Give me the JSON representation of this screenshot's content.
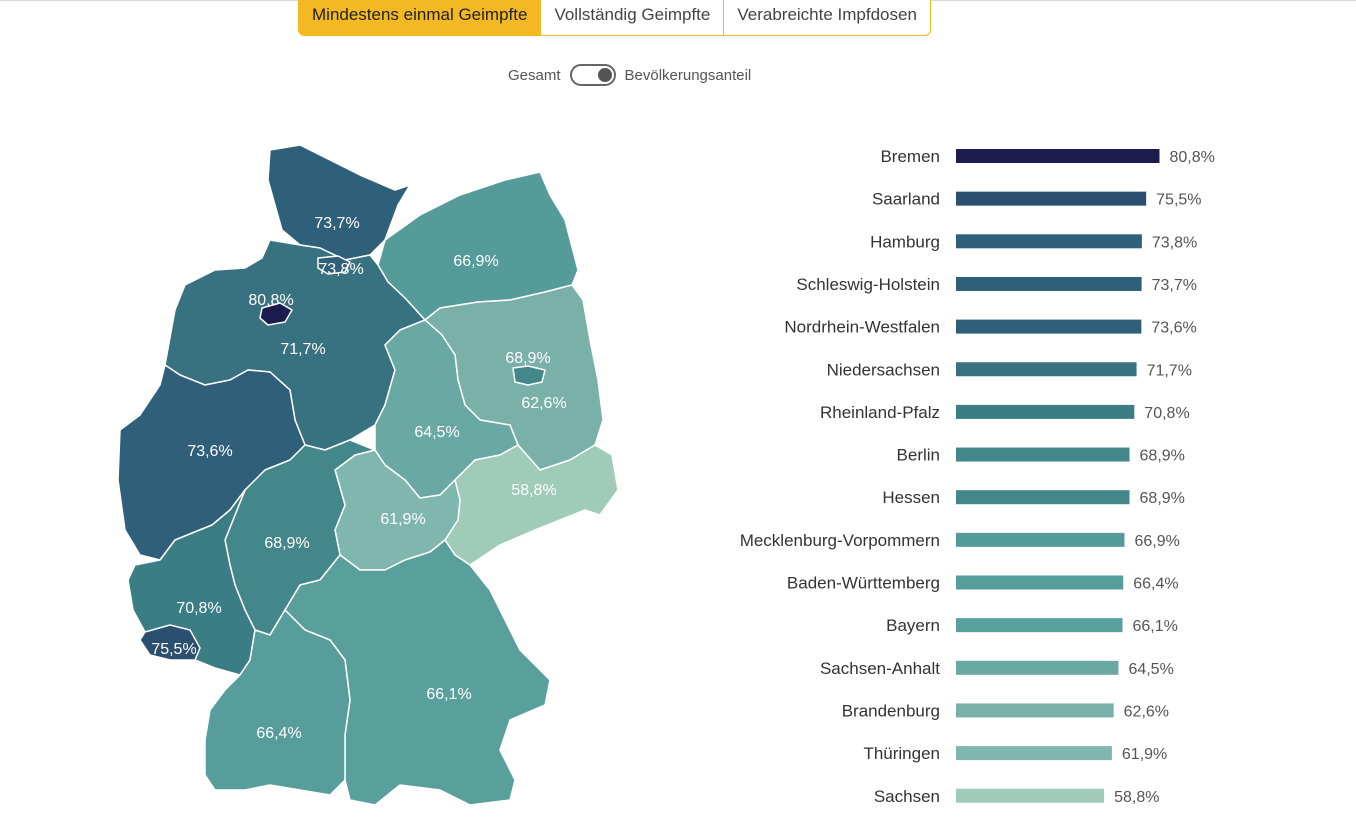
{
  "tabs": [
    {
      "label": "Mindestens einmal Geimpfte",
      "active": true
    },
    {
      "label": "Vollständig Geimpfte",
      "active": false
    },
    {
      "label": "Verabreichte Impfdosen",
      "active": false
    }
  ],
  "toggle": {
    "left_label": "Gesamt",
    "right_label": "Bevölkerungsanteil",
    "state": "right"
  },
  "colors": {
    "accent": "#f4b823"
  },
  "chart_data": {
    "type": "bar",
    "orientation": "horizontal",
    "categories": [
      "Bremen",
      "Saarland",
      "Hamburg",
      "Schleswig-Holstein",
      "Nordrhein-Westfalen",
      "Niedersachsen",
      "Rheinland-Pfalz",
      "Berlin",
      "Hessen",
      "Mecklenburg-Vorpommern",
      "Baden-Württemberg",
      "Bayern",
      "Sachsen-Anhalt",
      "Brandenburg",
      "Thüringen",
      "Sachsen"
    ],
    "values": [
      80.8,
      75.5,
      73.8,
      73.7,
      73.6,
      71.7,
      70.8,
      68.9,
      68.9,
      66.9,
      66.4,
      66.1,
      64.5,
      62.6,
      61.9,
      58.8
    ],
    "value_labels": [
      "80,8%",
      "75,5%",
      "73,8%",
      "73,7%",
      "73,6%",
      "71,7%",
      "70,8%",
      "68,9%",
      "68,9%",
      "66,9%",
      "66,4%",
      "66,1%",
      "64,5%",
      "62,6%",
      "61,9%",
      "58,8%"
    ],
    "colors": [
      "#1c1b4d",
      "#2b4f6e",
      "#2f6079",
      "#2f6079",
      "#305f7a",
      "#38717f",
      "#3b7d84",
      "#44878b",
      "#44878b",
      "#559b99",
      "#569d9b",
      "#599f9c",
      "#6aa8a3",
      "#79b1a9",
      "#7fb6ad",
      "#9fcbb8"
    ],
    "title": "",
    "xlabel": "",
    "ylabel": "",
    "xlim": [
      0,
      81
    ]
  },
  "map_data": {
    "states": [
      {
        "name": "Schleswig-Holstein",
        "label": "73,7%",
        "color": "#2f6079"
      },
      {
        "name": "Hamburg",
        "label": "73,8%",
        "color": "#2f6079"
      },
      {
        "name": "Mecklenburg-Vorpommern",
        "label": "66,9%",
        "color": "#559b99"
      },
      {
        "name": "Bremen",
        "label": "80,8%",
        "color": "#1c1b4d"
      },
      {
        "name": "Niedersachsen",
        "label": "71,7%",
        "color": "#38717f"
      },
      {
        "name": "Berlin",
        "label": "68,9%",
        "color": "#44878b"
      },
      {
        "name": "Brandenburg",
        "label": "62,6%",
        "color": "#79b1a9"
      },
      {
        "name": "Sachsen-Anhalt",
        "label": "64,5%",
        "color": "#6aa8a3"
      },
      {
        "name": "Nordrhein-Westfalen",
        "label": "73,6%",
        "color": "#305f7a"
      },
      {
        "name": "Sachsen",
        "label": "58,8%",
        "color": "#9fcbb8"
      },
      {
        "name": "Thüringen",
        "label": "61,9%",
        "color": "#7fb6ad"
      },
      {
        "name": "Hessen",
        "label": "68,9%",
        "color": "#44878b"
      },
      {
        "name": "Rheinland-Pfalz",
        "label": "70,8%",
        "color": "#3b7d84"
      },
      {
        "name": "Saarland",
        "label": "75,5%",
        "color": "#2b4f6e"
      },
      {
        "name": "Bayern",
        "label": "66,1%",
        "color": "#599f9c"
      },
      {
        "name": "Baden-Württemberg",
        "label": "66,4%",
        "color": "#569d9b"
      }
    ]
  }
}
